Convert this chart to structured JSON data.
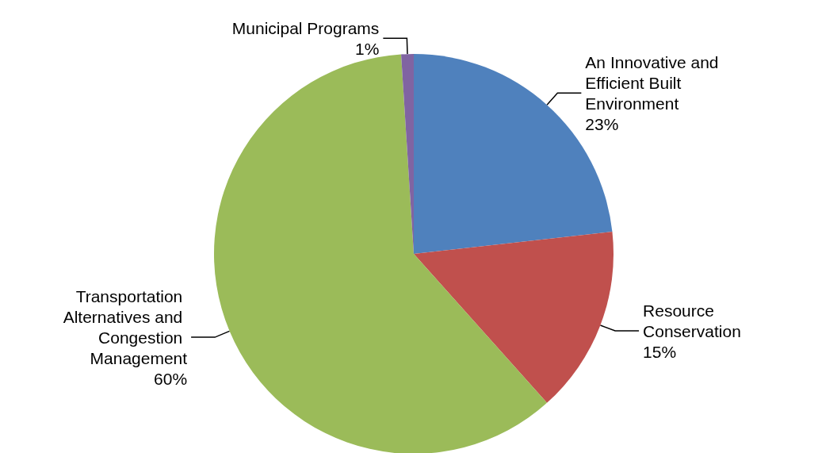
{
  "chart_data": {
    "type": "pie",
    "categories": [
      "An Innovative and Efficient Built Environment",
      "Resource Conservation",
      "Transportation Alternatives and Congestion Management",
      "Municipal Programs"
    ],
    "values": [
      23,
      15,
      60,
      1
    ],
    "value_labels": [
      "23%",
      "15%",
      "60%",
      "1%"
    ],
    "colors": [
      "#4f81bd",
      "#c0504d",
      "#9bbb59",
      "#8064a2"
    ]
  }
}
